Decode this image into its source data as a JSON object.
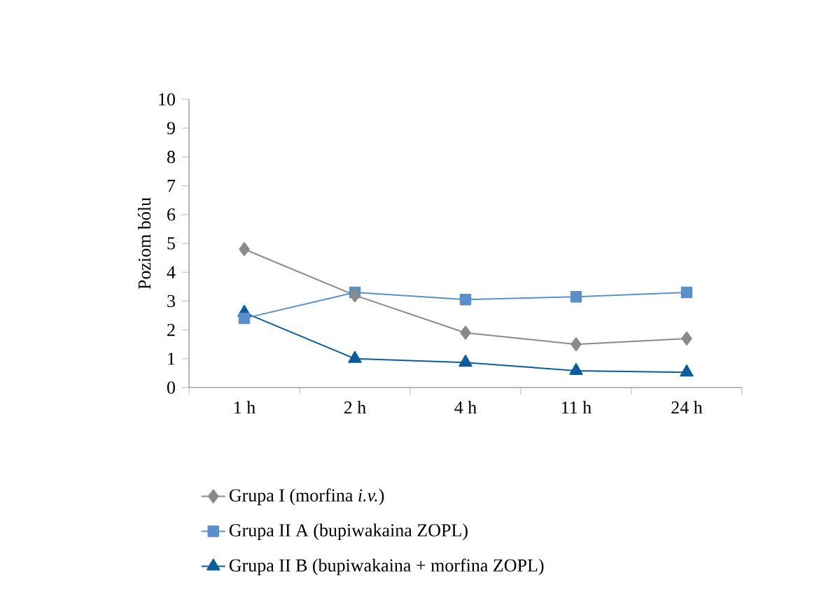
{
  "chart_data": {
    "type": "line",
    "ylabel": "Poziom bólu",
    "categories": [
      "1 h",
      "2 h",
      "4 h",
      "11 h",
      "24 h"
    ],
    "series": [
      {
        "name": "Grupa I (morfina *i.v.*)",
        "color": "#8a8a8a",
        "marker": "diamond",
        "values": [
          4.8,
          3.2,
          1.9,
          1.5,
          1.7
        ]
      },
      {
        "name": "Grupa II A (bupiwakaina ZOPL)",
        "color": "#5b8fc9",
        "marker": "square",
        "values": [
          2.4,
          3.3,
          3.05,
          3.15,
          3.3
        ]
      },
      {
        "name": "Grupa II B (bupiwakaina + morfina ZOPL)",
        "color": "#0b5d9c",
        "marker": "triangle",
        "values": [
          2.6,
          1.0,
          0.87,
          0.58,
          0.53
        ]
      }
    ],
    "ylim": [
      0,
      10
    ],
    "yticks": [
      0,
      1,
      2,
      3,
      4,
      5,
      6,
      7,
      8,
      9,
      10
    ],
    "legend": "bottom"
  }
}
